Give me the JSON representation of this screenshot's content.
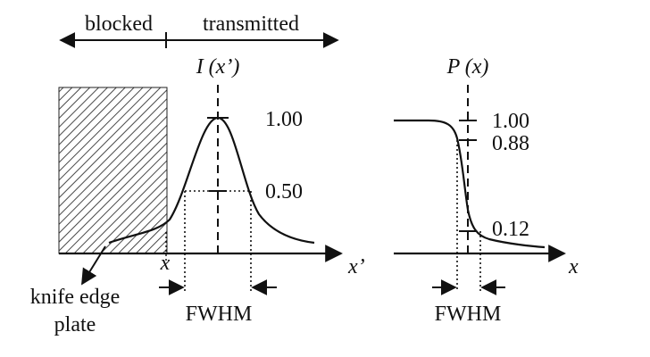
{
  "header": {
    "blocked_label": "blocked",
    "transmitted_label": "transmitted"
  },
  "left_plot": {
    "curve_label": "I (x’)",
    "level_max": "1.00",
    "level_half": "0.50",
    "x_edge_label": "x",
    "axis_label": "x’",
    "fwhm_label": "FWHM",
    "plate_label_line1": "knife edge",
    "plate_label_line2": "plate"
  },
  "right_plot": {
    "curve_label": "P (x)",
    "level_max": "1.00",
    "level_high": "0.88",
    "level_low": "0.12",
    "axis_label": "x",
    "fwhm_label": "FWHM"
  }
}
